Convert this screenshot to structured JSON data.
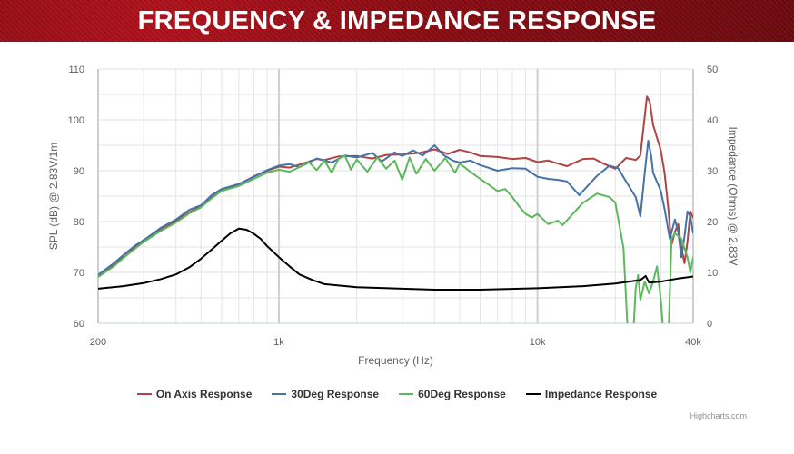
{
  "header": {
    "title": "FREQUENCY & IMPEDANCE RESPONSE"
  },
  "credits": "Highcharts.com",
  "chart_data": {
    "type": "line",
    "title": "FREQUENCY & IMPEDANCE RESPONSE",
    "xlabel": "Frequency (Hz)",
    "ylabel": "SPL (dB) @ 2.83V/1m",
    "y2label": "Impedance (Ohms) @ 2.83V",
    "xscale": "log",
    "xlim": [
      200,
      40000
    ],
    "xticks": [
      {
        "v": 200,
        "label": "200"
      },
      {
        "v": 1000,
        "label": "1k"
      },
      {
        "v": 10000,
        "label": "10k"
      },
      {
        "v": 40000,
        "label": "40k"
      }
    ],
    "ylim": [
      60,
      110
    ],
    "yticks": [
      "60",
      "70",
      "80",
      "90",
      "100",
      "110"
    ],
    "y2lim": [
      0,
      50
    ],
    "y2ticks": [
      "0",
      "10",
      "20",
      "30",
      "40",
      "50"
    ],
    "grid": true,
    "legend_position": "bottom",
    "series": [
      {
        "name": "On Axis Response",
        "color": "#b04444",
        "axis": "left",
        "points": [
          [
            200,
            69.3
          ],
          [
            230,
            71.5
          ],
          [
            250,
            73.3
          ],
          [
            280,
            75.2
          ],
          [
            300,
            76.4
          ],
          [
            350,
            78.4
          ],
          [
            400,
            80.2
          ],
          [
            450,
            81.8
          ],
          [
            500,
            83
          ],
          [
            550,
            85
          ],
          [
            600,
            86.3
          ],
          [
            700,
            87.3
          ],
          [
            800,
            88.9
          ],
          [
            900,
            90
          ],
          [
            1000,
            90.8
          ],
          [
            1100,
            90.6
          ],
          [
            1200,
            91.2
          ],
          [
            1400,
            92.3
          ],
          [
            1500,
            92.1
          ],
          [
            1700,
            92.8
          ],
          [
            2000,
            92.9
          ],
          [
            2300,
            92.4
          ],
          [
            2600,
            93.1
          ],
          [
            3000,
            93.2
          ],
          [
            3500,
            93.5
          ],
          [
            4000,
            94.2
          ],
          [
            4500,
            93.3
          ],
          [
            5000,
            94.1
          ],
          [
            5500,
            93.6
          ],
          [
            6000,
            92.9
          ],
          [
            7000,
            92.7
          ],
          [
            8000,
            92.3
          ],
          [
            9000,
            92.5
          ],
          [
            10000,
            91.7
          ],
          [
            11000,
            92
          ],
          [
            12000,
            91.4
          ],
          [
            13000,
            90.9
          ],
          [
            15000,
            92.3
          ],
          [
            16500,
            92.4
          ],
          [
            18000,
            91.4
          ],
          [
            20000,
            90.4
          ],
          [
            22000,
            92.5
          ],
          [
            24000,
            92.1
          ],
          [
            25000,
            93
          ],
          [
            26500,
            104.6
          ],
          [
            27200,
            103.5
          ],
          [
            28000,
            99
          ],
          [
            30000,
            94
          ],
          [
            31000,
            89.6
          ],
          [
            32000,
            83
          ],
          [
            33000,
            75.4
          ],
          [
            34000,
            78
          ],
          [
            35000,
            79.5
          ],
          [
            36000,
            75
          ],
          [
            37000,
            71.8
          ],
          [
            38000,
            76
          ],
          [
            39000,
            82
          ],
          [
            40000,
            80.7
          ]
        ]
      },
      {
        "name": "30Deg Response",
        "color": "#4572a7",
        "axis": "left",
        "points": [
          [
            200,
            69.5
          ],
          [
            230,
            71.8
          ],
          [
            250,
            73.4
          ],
          [
            280,
            75.4
          ],
          [
            300,
            76.3
          ],
          [
            350,
            78.8
          ],
          [
            400,
            80.4
          ],
          [
            450,
            82.3
          ],
          [
            500,
            83.2
          ],
          [
            550,
            85.2
          ],
          [
            600,
            86.4
          ],
          [
            700,
            87.4
          ],
          [
            800,
            88.8
          ],
          [
            900,
            90.1
          ],
          [
            1000,
            91
          ],
          [
            1100,
            91.3
          ],
          [
            1200,
            90.7
          ],
          [
            1400,
            92.4
          ],
          [
            1600,
            91.6
          ],
          [
            1800,
            93
          ],
          [
            2000,
            92.6
          ],
          [
            2300,
            93.5
          ],
          [
            2500,
            91.8
          ],
          [
            2800,
            93.6
          ],
          [
            3000,
            92.9
          ],
          [
            3300,
            94
          ],
          [
            3600,
            93
          ],
          [
            4000,
            95
          ],
          [
            4300,
            93.2
          ],
          [
            4700,
            92
          ],
          [
            5000,
            91.6
          ],
          [
            5500,
            92
          ],
          [
            6000,
            91.1
          ],
          [
            7000,
            90
          ],
          [
            8000,
            90.5
          ],
          [
            9000,
            90.4
          ],
          [
            10000,
            88.8
          ],
          [
            11000,
            88.4
          ],
          [
            12000,
            88.2
          ],
          [
            13000,
            87.9
          ],
          [
            14500,
            85.2
          ],
          [
            15500,
            86.8
          ],
          [
            17000,
            89
          ],
          [
            19000,
            91
          ],
          [
            20500,
            90.5
          ],
          [
            22000,
            87.9
          ],
          [
            24000,
            84.8
          ],
          [
            25000,
            81
          ],
          [
            26000,
            89.6
          ],
          [
            26800,
            95.9
          ],
          [
            27500,
            93
          ],
          [
            28000,
            89.6
          ],
          [
            30000,
            86
          ],
          [
            31000,
            82.5
          ],
          [
            32500,
            76.6
          ],
          [
            34000,
            80.4
          ],
          [
            35000,
            78
          ],
          [
            36000,
            73
          ],
          [
            37000,
            77
          ],
          [
            38000,
            82
          ],
          [
            39000,
            81
          ],
          [
            40000,
            77.7
          ]
        ]
      },
      {
        "name": "60Deg Response",
        "color": "#5cb85c",
        "axis": "left",
        "points": [
          [
            200,
            69.1
          ],
          [
            230,
            71.2
          ],
          [
            250,
            72.8
          ],
          [
            280,
            74.8
          ],
          [
            300,
            76
          ],
          [
            350,
            78.2
          ],
          [
            400,
            79.8
          ],
          [
            450,
            81.6
          ],
          [
            500,
            82.8
          ],
          [
            550,
            84.6
          ],
          [
            600,
            86
          ],
          [
            700,
            87
          ],
          [
            800,
            88.4
          ],
          [
            900,
            89.6
          ],
          [
            1000,
            90.2
          ],
          [
            1100,
            89.8
          ],
          [
            1200,
            90.7
          ],
          [
            1300,
            91.8
          ],
          [
            1400,
            90.1
          ],
          [
            1500,
            92
          ],
          [
            1600,
            89.6
          ],
          [
            1700,
            92.3
          ],
          [
            1800,
            93
          ],
          [
            1900,
            90.2
          ],
          [
            2000,
            92.2
          ],
          [
            2200,
            89.8
          ],
          [
            2400,
            92.6
          ],
          [
            2600,
            90.4
          ],
          [
            2800,
            92
          ],
          [
            3000,
            88.2
          ],
          [
            3200,
            92.6
          ],
          [
            3400,
            89.4
          ],
          [
            3700,
            92.3
          ],
          [
            4000,
            90
          ],
          [
            4400,
            92.5
          ],
          [
            4800,
            89.6
          ],
          [
            5000,
            91.4
          ],
          [
            5500,
            89.8
          ],
          [
            6000,
            88.4
          ],
          [
            6500,
            87.2
          ],
          [
            7000,
            86
          ],
          [
            7500,
            86.4
          ],
          [
            8000,
            84.8
          ],
          [
            8500,
            83
          ],
          [
            9000,
            81.5
          ],
          [
            9500,
            80.8
          ],
          [
            10000,
            81.5
          ],
          [
            11000,
            79.5
          ],
          [
            12000,
            80.2
          ],
          [
            12500,
            79.3
          ],
          [
            15000,
            83.7
          ],
          [
            17000,
            85.5
          ],
          [
            19000,
            84.8
          ],
          [
            20000,
            83.7
          ],
          [
            21500,
            74.8
          ],
          [
            22500,
            55
          ],
          [
            23300,
            55
          ],
          [
            24000,
            67
          ],
          [
            24500,
            69.5
          ],
          [
            25000,
            64.6
          ],
          [
            26000,
            68.2
          ],
          [
            27000,
            65.9
          ],
          [
            28000,
            68.2
          ],
          [
            29000,
            71.2
          ],
          [
            30000,
            64.6
          ],
          [
            31000,
            55
          ],
          [
            32000,
            55
          ],
          [
            33000,
            76.6
          ],
          [
            34000,
            77.7
          ],
          [
            36000,
            76.6
          ],
          [
            38000,
            73
          ],
          [
            39000,
            70
          ],
          [
            40000,
            73
          ]
        ]
      },
      {
        "name": "Impedance Response",
        "color": "#000000",
        "axis": "right",
        "points": [
          [
            200,
            6.8
          ],
          [
            250,
            7.3
          ],
          [
            300,
            7.9
          ],
          [
            350,
            8.7
          ],
          [
            400,
            9.6
          ],
          [
            450,
            11
          ],
          [
            500,
            12.7
          ],
          [
            550,
            14.5
          ],
          [
            600,
            16.2
          ],
          [
            650,
            17.7
          ],
          [
            700,
            18.6
          ],
          [
            750,
            18.4
          ],
          [
            800,
            17.6
          ],
          [
            850,
            16.6
          ],
          [
            900,
            15.2
          ],
          [
            1000,
            13
          ],
          [
            1100,
            11.2
          ],
          [
            1200,
            9.6
          ],
          [
            1350,
            8.5
          ],
          [
            1500,
            7.7
          ],
          [
            2000,
            7.1
          ],
          [
            3000,
            6.8
          ],
          [
            4000,
            6.6
          ],
          [
            6000,
            6.6
          ],
          [
            10000,
            6.9
          ],
          [
            15000,
            7.3
          ],
          [
            20000,
            7.8
          ],
          [
            25000,
            8.5
          ],
          [
            26200,
            9.3
          ],
          [
            27000,
            8
          ],
          [
            30000,
            8.2
          ],
          [
            35000,
            8.8
          ],
          [
            40000,
            9.2
          ]
        ]
      }
    ]
  }
}
